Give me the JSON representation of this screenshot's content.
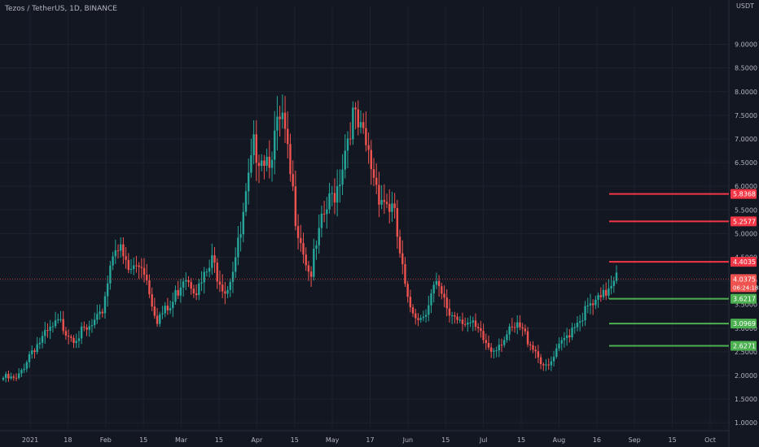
{
  "header": {
    "symbol_label": "Tezos / TetherUS, 1D, BINANCE",
    "currency": "USDT"
  },
  "colors": {
    "background": "#131722",
    "grid": "#1e222d",
    "up": "#26a69a",
    "down": "#ef5350",
    "axis_text": "#b2b5be",
    "resistance": "#f23645",
    "support": "#4caf50"
  },
  "chart_data": {
    "type": "candlestick",
    "ylim": [
      0.9,
      9.8
    ],
    "y_ticks": [
      "1.0000",
      "1.5000",
      "2.0000",
      "2.5000",
      "3.0000",
      "3.5000",
      "4.0000",
      "4.5000",
      "5.0000",
      "5.5000",
      "6.0000",
      "6.5000",
      "7.0000",
      "7.5000",
      "8.0000",
      "8.5000",
      "9.0000"
    ],
    "x_labels": [
      "2021",
      "18",
      "Feb",
      "15",
      "Mar",
      "15",
      "Apr",
      "15",
      "May",
      "17",
      "Jun",
      "15",
      "Jul",
      "15",
      "Aug",
      "16",
      "Sep",
      "15",
      "Oct"
    ],
    "key_closes": [
      2.0,
      1.95,
      2.6,
      2.9,
      3.2,
      2.9,
      3.0,
      3.3,
      5.0,
      4.3,
      4.5,
      3.3,
      3.5,
      4.3,
      3.9,
      4.5,
      3.9,
      5.0,
      7.0,
      6.8,
      7.6,
      5.5,
      4.2,
      5.5,
      6.2,
      7.7,
      7.0,
      6.0,
      5.6,
      3.6,
      3.3,
      4.0,
      3.4,
      3.3,
      3.0,
      2.6,
      2.9,
      3.1,
      2.7,
      2.15,
      2.7,
      3.2,
      3.5,
      3.7,
      4.37
    ],
    "last_price": {
      "value": 4.0375,
      "label": "4.0375",
      "countdown": "06:24:18"
    },
    "levels": [
      {
        "value": 5.8368,
        "label": "5.8368",
        "kind": "resistance"
      },
      {
        "value": 5.2577,
        "label": "5.2577",
        "kind": "resistance"
      },
      {
        "value": 4.4035,
        "label": "4.4035",
        "kind": "resistance"
      },
      {
        "value": 3.6217,
        "label": "3.6217",
        "kind": "support"
      },
      {
        "value": 3.0969,
        "label": "3.0969",
        "kind": "support"
      },
      {
        "value": 2.6271,
        "label": "2.6271",
        "kind": "support"
      }
    ]
  }
}
